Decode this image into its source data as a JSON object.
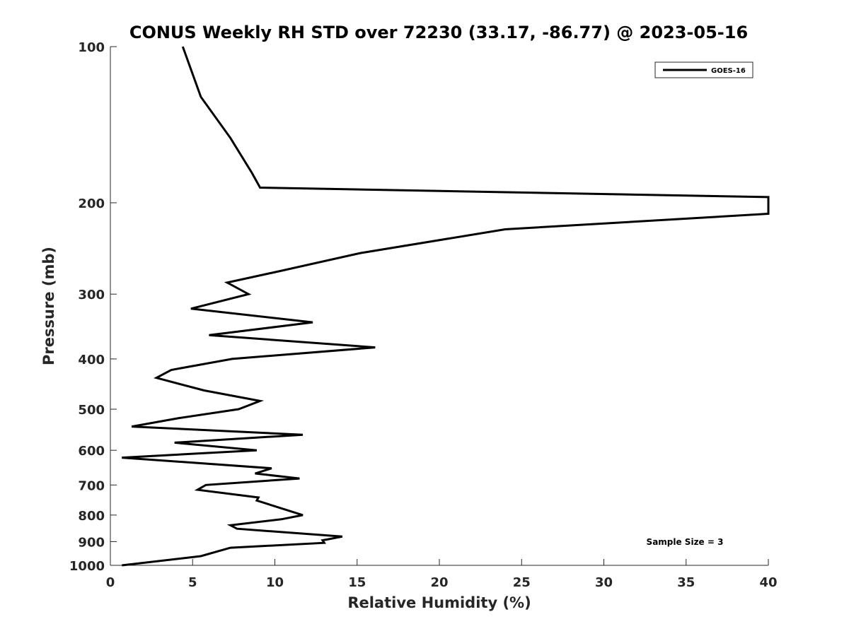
{
  "chart_data": {
    "type": "line",
    "title": "CONUS Weekly RH STD over 72230 (33.17, -86.77) @ 2023-05-16",
    "xlabel": "Relative Humidity (%)",
    "ylabel": "Pressure (mb)",
    "xlim": [
      0,
      40
    ],
    "ylim": [
      1000,
      100
    ],
    "yscale": "log",
    "y_reversed": true,
    "grid": false,
    "legend_position": "top-right",
    "x_ticks": [
      0,
      5,
      10,
      15,
      20,
      25,
      30,
      35,
      40
    ],
    "y_ticks": [
      100,
      200,
      300,
      400,
      500,
      600,
      700,
      800,
      900,
      1000
    ],
    "series": [
      {
        "name": "GOES-16",
        "color": "#000000",
        "points": [
          [
            4.4,
            100
          ],
          [
            5.5,
            125
          ],
          [
            7.3,
            150
          ],
          [
            8.6,
            175
          ],
          [
            9.1,
            187
          ],
          [
            40.0,
            195
          ],
          [
            40.0,
            210
          ],
          [
            24.0,
            225
          ],
          [
            15.2,
            250
          ],
          [
            10.5,
            270
          ],
          [
            7.1,
            285
          ],
          [
            8.4,
            300
          ],
          [
            4.9,
            320
          ],
          [
            12.3,
            340
          ],
          [
            6.0,
            360
          ],
          [
            16.1,
            380
          ],
          [
            7.4,
            400
          ],
          [
            3.7,
            420
          ],
          [
            2.8,
            435
          ],
          [
            5.7,
            460
          ],
          [
            9.1,
            482
          ],
          [
            7.8,
            500
          ],
          [
            4.2,
            520
          ],
          [
            1.3,
            540
          ],
          [
            11.7,
            560
          ],
          [
            3.9,
            580
          ],
          [
            8.9,
            600
          ],
          [
            0.7,
            620
          ],
          [
            9.8,
            650
          ],
          [
            8.8,
            665
          ],
          [
            11.5,
            680
          ],
          [
            5.8,
            700
          ],
          [
            5.3,
            715
          ],
          [
            9.0,
            740
          ],
          [
            8.9,
            750
          ],
          [
            11.7,
            800
          ],
          [
            10.4,
            815
          ],
          [
            7.3,
            837
          ],
          [
            7.7,
            850
          ],
          [
            14.1,
            880
          ],
          [
            12.9,
            895
          ],
          [
            13.0,
            905
          ],
          [
            7.3,
            925
          ],
          [
            5.5,
            960
          ],
          [
            0.7,
            1000
          ]
        ]
      }
    ],
    "legend_entries": [
      "GOES-16"
    ],
    "annotation": "Sample Size = 3"
  }
}
